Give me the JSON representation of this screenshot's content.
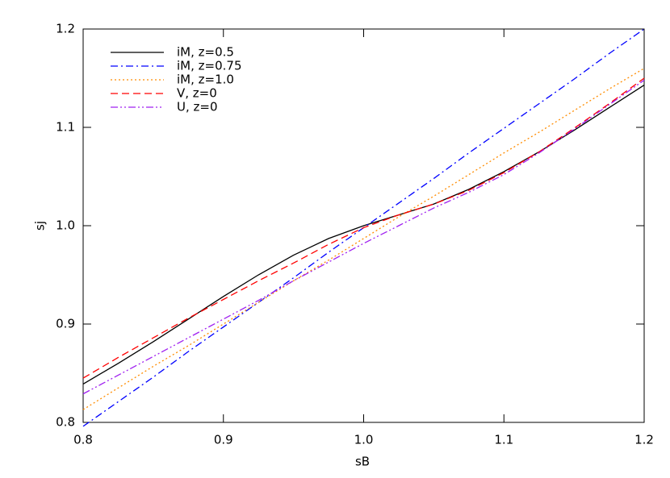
{
  "chart_data": {
    "type": "line",
    "xlabel": "sB",
    "ylabel": "sj",
    "x": [
      0.8,
      0.825,
      0.85,
      0.875,
      0.9,
      0.925,
      0.95,
      0.975,
      1.0,
      1.025,
      1.05,
      1.075,
      1.1,
      1.125,
      1.15,
      1.175,
      1.2
    ],
    "series": [
      {
        "name": "iM, z=0.5",
        "color": "#000000",
        "dash": "solid",
        "values": [
          0.839,
          0.86,
          0.882,
          0.905,
          0.928,
          0.95,
          0.97,
          0.987,
          1.0,
          1.011,
          1.022,
          1.037,
          1.055,
          1.075,
          1.097,
          1.12,
          1.143
        ]
      },
      {
        "name": "iM, z=0.75",
        "color": "#0000ff",
        "dash": "dashdot",
        "values": [
          0.796,
          0.821,
          0.846,
          0.872,
          0.897,
          0.922,
          0.947,
          0.973,
          0.998,
          1.023,
          1.048,
          1.074,
          1.099,
          1.124,
          1.149,
          1.175,
          1.2
        ]
      },
      {
        "name": "iM, z=1.0",
        "color": "#ff8c00",
        "dash": "dotted",
        "values": [
          0.813,
          0.835,
          0.857,
          0.878,
          0.9,
          0.922,
          0.944,
          0.965,
          0.987,
          1.009,
          1.03,
          1.052,
          1.074,
          1.095,
          1.117,
          1.139,
          1.16
        ]
      },
      {
        "name": "V, z=0",
        "color": "#ff0000",
        "dash": "dashed",
        "values": [
          0.845,
          0.866,
          0.886,
          0.906,
          0.925,
          0.944,
          0.962,
          0.981,
          0.998,
          1.011,
          1.022,
          1.036,
          1.054,
          1.075,
          1.099,
          1.124,
          1.15
        ]
      },
      {
        "name": "U, z=0",
        "color": "#a020f0",
        "dash": "dashdotdot",
        "values": [
          0.829,
          0.848,
          0.867,
          0.886,
          0.905,
          0.924,
          0.944,
          0.963,
          0.982,
          1.0,
          1.018,
          1.034,
          1.052,
          1.074,
          1.098,
          1.123,
          1.148
        ]
      }
    ],
    "xlim": [
      0.8,
      1.2
    ],
    "ylim": [
      0.8,
      1.2
    ],
    "xticks": [
      0.8,
      0.9,
      {
        "value": 1.0,
        "label": "1.0"
      },
      1.1,
      1.2
    ],
    "yticks": [
      0.8,
      0.9,
      {
        "value": 1.0,
        "label": "1.0"
      },
      1.1,
      1.2
    ],
    "legend": "upper-left"
  }
}
